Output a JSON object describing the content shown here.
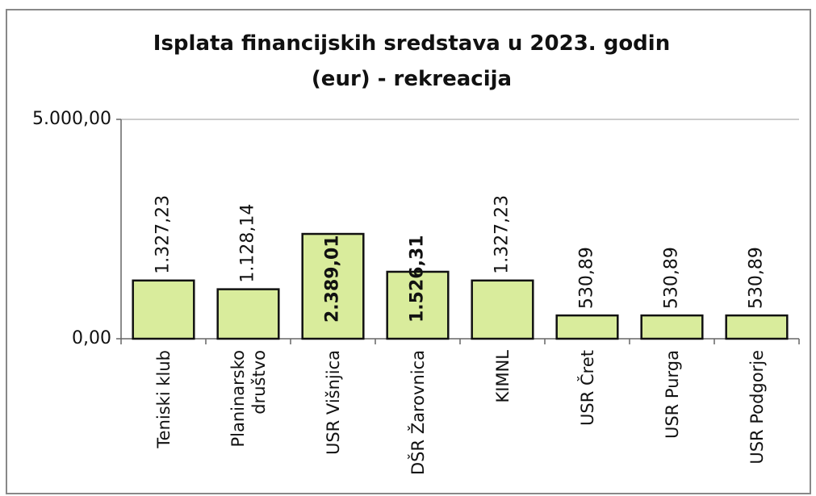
{
  "chart_data": {
    "type": "bar",
    "title": "Isplata financijskih sredstava u 2023. godin (eur) - rekreacija",
    "categories": [
      "Teniski klub",
      "Planinarsko društvo",
      "USR Višnjica",
      "DŠR Žarovnica",
      "KIMNL",
      "USR Čret",
      "USR Purga",
      "USR Podgorje"
    ],
    "values": [
      1327.23,
      1128.14,
      2389.01,
      1526.31,
      1327.23,
      530.89,
      530.89,
      530.89
    ],
    "value_labels": [
      "1.327,23",
      "1.128,14",
      "2.389,01",
      "1.526,31",
      "1.327,23",
      "530,89",
      "530,89",
      "530,89"
    ],
    "color": "#d9ec9c",
    "ylim": [
      0,
      5000
    ],
    "yticks": [
      {
        "value": 0,
        "label": "0,00"
      },
      {
        "value": 5000,
        "label": "5.000,00"
      }
    ],
    "grid": true
  }
}
